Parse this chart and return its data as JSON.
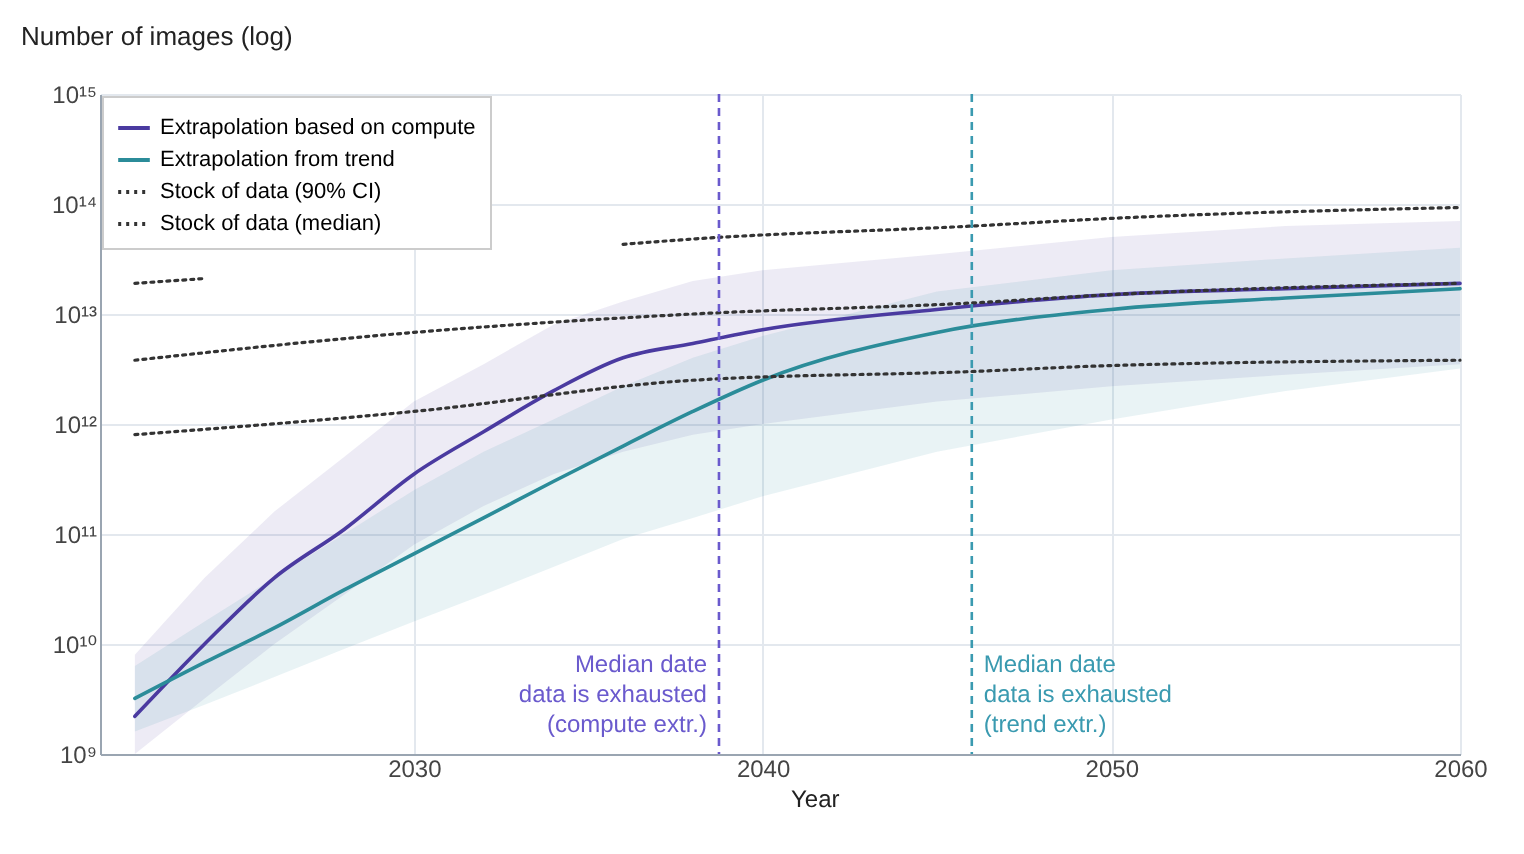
{
  "chart_data": {
    "type": "line",
    "xlabel": "Year",
    "ylabel": "Number of images (log)",
    "x": [
      2022,
      2024,
      2026,
      2028,
      2030,
      2032,
      2034,
      2036,
      2038,
      2040,
      2045,
      2050,
      2055,
      2060
    ],
    "series": [
      {
        "name": "Extrapolation based on compute",
        "color": "#4a3aa0",
        "line_style": "solid",
        "values": [
          2200000000.0,
          10000000000.0,
          40000000000.0,
          110000000000.0,
          350000000000.0,
          850000000000.0,
          2000000000000.0,
          4000000000000.0,
          5400000000000.0,
          7200000000000.0,
          11000000000000.0,
          15000000000000.0,
          17000000000000.0,
          19000000000000.0
        ],
        "lower": [
          1000000000.0,
          3200000000.0,
          10000000000.0,
          28000000000.0,
          80000000000.0,
          180000000000.0,
          350000000000.0,
          560000000000.0,
          800000000000.0,
          1000000000000.0,
          1600000000000.0,
          2200000000000.0,
          2800000000000.0,
          3500000000000.0
        ],
        "upper": [
          8000000000.0,
          40000000000.0,
          160000000000.0,
          500000000000.0,
          1600000000000.0,
          3500000000000.0,
          8000000000000.0,
          13000000000000.0,
          20000000000000.0,
          25000000000000.0,
          35000000000000.0,
          50000000000000.0,
          63000000000000.0,
          70000000000000.0
        ]
      },
      {
        "name": "Extrapolation from trend",
        "color": "#2b8c99",
        "line_style": "solid",
        "values": [
          3200000000.0,
          6800000000.0,
          14000000000.0,
          31000000000.0,
          66000000000.0,
          140000000000.0,
          300000000000.0,
          630000000000.0,
          1300000000000.0,
          2500000000000.0,
          6800000000000.0,
          11000000000000.0,
          14000000000000.0,
          17000000000000.0
        ],
        "lower": [
          1600000000.0,
          2800000000.0,
          5000000000.0,
          9000000000.0,
          16000000000.0,
          28000000000.0,
          50000000000.0,
          90000000000.0,
          140000000000.0,
          220000000000.0,
          560000000000.0,
          1100000000000.0,
          2000000000000.0,
          3200000000000.0
        ],
        "upper": [
          6300000000.0,
          16000000000.0,
          40000000000.0,
          100000000000.0,
          250000000000.0,
          560000000000.0,
          1100000000000.0,
          2200000000000.0,
          4000000000000.0,
          6300000000000.0,
          16000000000000.0,
          25000000000000.0,
          32000000000000.0,
          40000000000000.0
        ]
      },
      {
        "name": "Stock of data (90% CI)",
        "color": "#333333",
        "line_style": "dotted",
        "x": [
          2022,
          2024,
          2030,
          2036,
          2038,
          2046,
          2050,
          2060
        ],
        "values": [
          19000000000000.0,
          21000000000000.0,
          null,
          43000000000000.0,
          48000000000000.0,
          63000000000000.0,
          74000000000000.0,
          93000000000000.0
        ]
      },
      {
        "color": "#333333",
        "line_style": "dotted",
        "x": [
          2022,
          2030,
          2038,
          2046,
          2050,
          2060
        ],
        "values": [
          800000000000.0,
          1300000000000.0,
          2500000000000.0,
          3000000000000.0,
          3400000000000.0,
          3800000000000.0
        ]
      },
      {
        "name": "Stock of data (median)",
        "color": "#333333",
        "line_style": "dotted",
        "x": [
          2022,
          2030,
          2038,
          2046,
          2050,
          2060
        ],
        "values": [
          3800000000000.0,
          6800000000000.0,
          10000000000000.0,
          12600000000000.0,
          15000000000000.0,
          19000000000000.0
        ]
      }
    ],
    "ref_lines": [
      {
        "axis": "x",
        "value": 2038.75,
        "label": "Median date\ndata is exhausted\n(compute extr.)",
        "color": "#6a5acd",
        "line_style": "dashed"
      },
      {
        "axis": "x",
        "value": 2046,
        "label": "Median date\ndata is exhausted\n(trend extr.)",
        "color": "#3a9ab0",
        "line_style": "dashed"
      }
    ],
    "xlim": [
      2021,
      2060
    ],
    "xticks": [
      2030,
      2040,
      2050,
      2060
    ],
    "ylim": [
      1000000000.0,
      1000000000000000.0
    ],
    "log": true,
    "yticks": [
      {
        "value": 1000000000.0,
        "label": "10⁹"
      },
      {
        "value": 10000000000.0,
        "label": "10¹⁰"
      },
      {
        "value": 100000000000.0,
        "label": "10¹¹"
      },
      {
        "value": 1000000000000.0,
        "label": "10¹²"
      },
      {
        "value": 10000000000000.0,
        "label": "10¹³"
      },
      {
        "value": 100000000000000.0,
        "label": "10¹⁴"
      },
      {
        "value": 1000000000000000.0,
        "label": "10¹⁵"
      }
    ],
    "grid": true,
    "legend": "top left"
  }
}
